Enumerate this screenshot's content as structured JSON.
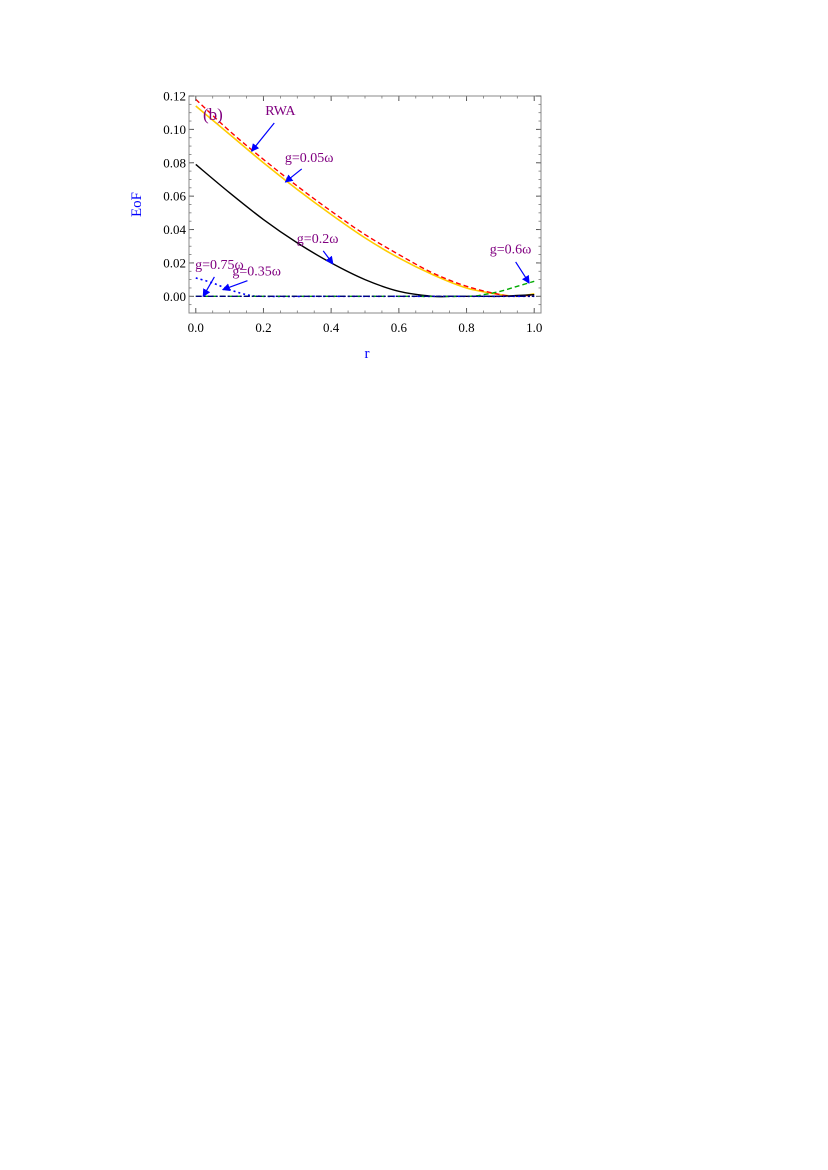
{
  "chart_data": {
    "type": "line",
    "panel_label": "(b)",
    "xlabel": "r",
    "ylabel": "EoF",
    "xlim": [
      -0.02,
      1.02
    ],
    "ylim": [
      -0.01,
      0.12
    ],
    "x_ticks": [
      "0.0",
      "0.2",
      "0.4",
      "0.6",
      "0.8",
      "1.0"
    ],
    "y_ticks": [
      "0.00",
      "0.02",
      "0.04",
      "0.06",
      "0.08",
      "0.10",
      "0.12"
    ],
    "x_tick_values": [
      0.0,
      0.2,
      0.4,
      0.6,
      0.8,
      1.0
    ],
    "y_tick_values": [
      0.0,
      0.02,
      0.04,
      0.06,
      0.08,
      0.1,
      0.12
    ],
    "grid": false,
    "frame": "boxed",
    "colors": {
      "label": "#800080",
      "arrow": "#0000ff",
      "axis_title": "#0000ff"
    },
    "series": [
      {
        "name": "RWA",
        "color": "#ffcc00",
        "dash": "",
        "width": 1.6,
        "x": [
          0.0,
          0.1,
          0.2,
          0.3,
          0.4,
          0.5,
          0.6,
          0.7,
          0.8,
          0.9,
          0.95,
          1.0
        ],
        "y": [
          0.114,
          0.097,
          0.08,
          0.064,
          0.049,
          0.035,
          0.023,
          0.013,
          0.005,
          0.001,
          0.0,
          0.0015
        ]
      },
      {
        "name": "g=0.05ω",
        "color": "#ff0000",
        "dash": "5,3",
        "width": 1.4,
        "x": [
          0.0,
          0.1,
          0.2,
          0.3,
          0.4,
          0.5,
          0.6,
          0.7,
          0.8,
          0.9,
          0.95,
          1.0
        ],
        "y": [
          0.118,
          0.099,
          0.082,
          0.066,
          0.051,
          0.037,
          0.025,
          0.014,
          0.006,
          0.001,
          0.0,
          0.001
        ]
      },
      {
        "name": "g=0.2ω",
        "color": "#000000",
        "dash": "",
        "width": 1.4,
        "x": [
          0.0,
          0.1,
          0.2,
          0.3,
          0.4,
          0.5,
          0.6,
          0.7,
          0.75,
          0.8,
          0.85,
          0.9,
          0.95,
          1.0
        ],
        "y": [
          0.079,
          0.062,
          0.046,
          0.032,
          0.02,
          0.01,
          0.003,
          0.0,
          0.0,
          0.0,
          0.0,
          0.0,
          0.0005,
          0.001
        ]
      },
      {
        "name": "g=0.35ω",
        "color": "#0000ff",
        "dash": "2,3",
        "width": 1.6,
        "x": [
          0.0,
          0.05,
          0.1,
          0.15,
          0.2,
          0.4,
          0.6,
          0.8,
          1.0
        ],
        "y": [
          0.011,
          0.008,
          0.004,
          0.001,
          0.0,
          0.0,
          0.0,
          0.0,
          0.0
        ]
      },
      {
        "name": "g=0.6ω",
        "color": "#00aa00",
        "dash": "5,3",
        "width": 1.4,
        "x": [
          0.0,
          0.2,
          0.4,
          0.6,
          0.8,
          0.85,
          0.9,
          0.95,
          1.0
        ],
        "y": [
          0.0,
          0.0,
          0.0,
          0.0,
          0.0,
          0.001,
          0.003,
          0.006,
          0.009
        ]
      },
      {
        "name": "g=0.75ω",
        "color": "#000080",
        "dash": "6,2,2,2",
        "width": 1.3,
        "x": [
          0.0,
          0.2,
          0.4,
          0.6,
          0.8,
          1.0
        ],
        "y": [
          0.0,
          0.0,
          0.0,
          0.0,
          0.0,
          0.0
        ]
      }
    ],
    "annotations": [
      {
        "text": "RWA",
        "tx": 0.25,
        "ty": 0.1085,
        "ax": 0.17,
        "ay": 0.0875,
        "headx": 0.165,
        "heady": 0.087
      },
      {
        "text": "g=0.05ω",
        "tx": 0.335,
        "ty": 0.0805,
        "ax": 0.275,
        "ay": 0.0695,
        "headx": 0.265,
        "heady": 0.0685
      },
      {
        "text": "g=0.2ω",
        "tx": 0.36,
        "ty": 0.032,
        "ax": 0.4,
        "ay": 0.02,
        "headx": 0.405,
        "heady": 0.0195
      },
      {
        "text": "g=0.35ω",
        "tx": 0.18,
        "ty": 0.0125,
        "ax": 0.085,
        "ay": 0.0045,
        "headx": 0.08,
        "heady": 0.004
      },
      {
        "text": "g=0.75ω",
        "tx": 0.07,
        "ty": 0.0165,
        "ax": 0.025,
        "ay": 0.001,
        "headx": 0.022,
        "heady": 0.0
      },
      {
        "text": "g=0.6ω",
        "tx": 0.93,
        "ty": 0.0255,
        "ax": 0.98,
        "ay": 0.0085,
        "headx": 0.985,
        "heady": 0.008
      }
    ]
  }
}
